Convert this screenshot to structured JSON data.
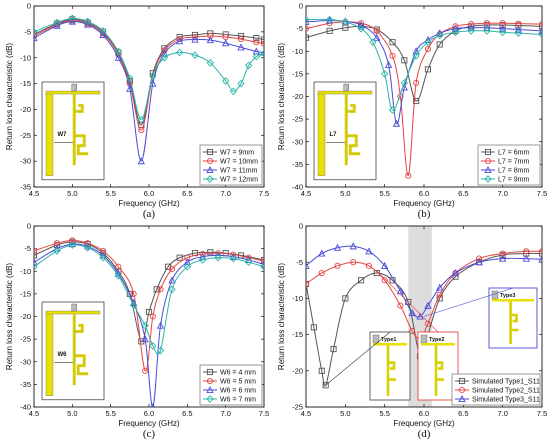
{
  "figure": {
    "panel_labels": [
      "(a)",
      "(b)",
      "(c)",
      "(d)"
    ]
  },
  "chart_data": [
    {
      "type": "line",
      "panel": "(a)",
      "xlabel": "Frequency (GHz)",
      "ylabel": "Return loss characteristic (dB)",
      "xlim": [
        4.5,
        7.5
      ],
      "ylim": [
        -35,
        0
      ],
      "xticks": [
        "4.5",
        "5.0",
        "5.5",
        "6.0",
        "6.5",
        "7.0",
        "7.5"
      ],
      "yticks": [
        "0",
        "-5",
        "-10",
        "-15",
        "-20",
        "-25",
        "-30",
        "-35"
      ],
      "legend_position": "bottom-right",
      "inset_label": "W7",
      "series": [
        {
          "name": "W7 =  9mm",
          "color": "#555555",
          "marker": "square",
          "x": [
            4.5,
            4.8,
            5.0,
            5.2,
            5.4,
            5.6,
            5.75,
            5.9,
            6.05,
            6.2,
            6.4,
            6.6,
            6.8,
            7.0,
            7.2,
            7.4,
            7.5
          ],
          "y": [
            -5.5,
            -3.4,
            -2.6,
            -3.2,
            -5.0,
            -9.0,
            -14.5,
            -23.0,
            -13.0,
            -8.2,
            -6.0,
            -5.6,
            -5.3,
            -5.5,
            -5.8,
            -6.2,
            -6.5
          ]
        },
        {
          "name": "W7 = 10mm",
          "color": "#e64545",
          "marker": "circle",
          "x": [
            4.5,
            4.8,
            5.0,
            5.2,
            5.4,
            5.6,
            5.75,
            5.9,
            6.05,
            6.2,
            6.4,
            6.6,
            6.8,
            7.0,
            7.2,
            7.4,
            7.5
          ],
          "y": [
            -5.8,
            -3.6,
            -2.8,
            -3.4,
            -5.3,
            -9.4,
            -15.0,
            -24.0,
            -13.5,
            -8.6,
            -6.4,
            -6.0,
            -5.8,
            -6.0,
            -6.4,
            -7.0,
            -7.3
          ]
        },
        {
          "name": "W7 = 11mm",
          "color": "#4a4ad8",
          "marker": "triangle",
          "x": [
            4.5,
            4.8,
            5.0,
            5.2,
            5.4,
            5.6,
            5.75,
            5.9,
            6.05,
            6.2,
            6.4,
            6.6,
            6.8,
            7.0,
            7.2,
            7.4,
            7.5
          ],
          "y": [
            -6.2,
            -3.8,
            -3.0,
            -3.6,
            -5.6,
            -10.0,
            -16.0,
            -30.0,
            -15.0,
            -9.2,
            -6.8,
            -6.5,
            -6.6,
            -7.2,
            -8.0,
            -8.8,
            -9.0
          ]
        },
        {
          "name": "W7 = 12mm",
          "color": "#2bb5a8",
          "marker": "diamond",
          "x": [
            4.5,
            4.8,
            5.0,
            5.2,
            5.4,
            5.6,
            5.75,
            5.9,
            6.05,
            6.2,
            6.4,
            6.6,
            6.8,
            7.0,
            7.1,
            7.2,
            7.3,
            7.4,
            7.5
          ],
          "y": [
            -5.0,
            -3.2,
            -2.4,
            -3.0,
            -4.8,
            -8.8,
            -14.0,
            -22.0,
            -13.5,
            -10.0,
            -9.0,
            -9.5,
            -11.0,
            -14.5,
            -16.5,
            -15.0,
            -11.5,
            -9.8,
            -9.2
          ]
        }
      ]
    },
    {
      "type": "line",
      "panel": "(b)",
      "xlabel": "Frequency (GHz)",
      "ylabel": "Return loss characteristic (dB)",
      "xlim": [
        4.5,
        7.5
      ],
      "ylim": [
        -40,
        0
      ],
      "xticks": [
        "4.5",
        "5.0",
        "5.5",
        "6.0",
        "6.5",
        "7.0",
        "7.5"
      ],
      "yticks": [
        "0",
        "-5",
        "-10",
        "-15",
        "-20",
        "-25",
        "-30",
        "-35",
        "-40"
      ],
      "legend_position": "bottom-right",
      "inset_label": "L7",
      "series": [
        {
          "name": "L7 = 6mm",
          "color": "#555555",
          "marker": "square",
          "x": [
            4.5,
            4.8,
            5.0,
            5.2,
            5.4,
            5.6,
            5.75,
            5.9,
            6.05,
            6.2,
            6.4,
            6.6,
            6.8,
            7.0,
            7.2,
            7.5
          ],
          "y": [
            -7.0,
            -5.5,
            -4.8,
            -4.5,
            -5.2,
            -8.0,
            -12.0,
            -21.0,
            -14.0,
            -8.5,
            -5.5,
            -4.5,
            -4.2,
            -4.2,
            -4.3,
            -4.5
          ]
        },
        {
          "name": "L7 = 7mm",
          "color": "#e64545",
          "marker": "circle",
          "x": [
            4.5,
            4.8,
            5.0,
            5.2,
            5.4,
            5.6,
            5.7,
            5.8,
            5.9,
            6.05,
            6.2,
            6.4,
            6.6,
            6.8,
            7.0,
            7.2,
            7.5
          ],
          "y": [
            -5.0,
            -3.8,
            -3.5,
            -3.8,
            -5.5,
            -11.0,
            -20.0,
            -37.5,
            -17.0,
            -9.5,
            -6.2,
            -4.5,
            -4.0,
            -3.8,
            -3.8,
            -3.9,
            -4.0
          ]
        },
        {
          "name": "L7 = 8mm",
          "color": "#4a4ad8",
          "marker": "triangle",
          "x": [
            4.5,
            4.8,
            5.0,
            5.2,
            5.4,
            5.55,
            5.65,
            5.75,
            5.9,
            6.05,
            6.2,
            6.4,
            6.6,
            6.8,
            7.0,
            7.2,
            7.5
          ],
          "y": [
            -3.5,
            -3.2,
            -3.4,
            -4.2,
            -7.0,
            -13.0,
            -26.0,
            -18.0,
            -10.0,
            -7.5,
            -6.0,
            -5.0,
            -4.8,
            -4.8,
            -5.0,
            -5.2,
            -5.5
          ]
        },
        {
          "name": "L7 = 9mm",
          "color": "#2bb5a8",
          "marker": "diamond",
          "x": [
            4.5,
            4.8,
            5.0,
            5.2,
            5.35,
            5.5,
            5.6,
            5.75,
            5.9,
            6.05,
            6.2,
            6.4,
            6.6,
            6.8,
            7.0,
            7.2,
            7.5
          ],
          "y": [
            -3.0,
            -3.0,
            -3.5,
            -5.0,
            -8.0,
            -15.0,
            -23.0,
            -17.0,
            -11.0,
            -8.0,
            -6.5,
            -5.8,
            -5.5,
            -5.5,
            -5.8,
            -6.0,
            -6.3
          ]
        }
      ]
    },
    {
      "type": "line",
      "panel": "(c)",
      "xlabel": "Frequency (GHz)",
      "ylabel": "Return loss characteristic (dB)",
      "xlim": [
        4.5,
        7.5
      ],
      "ylim": [
        -40,
        0
      ],
      "xticks": [
        "4.5",
        "5.0",
        "5.5",
        "6.0",
        "6.5",
        "7.0",
        "7.5"
      ],
      "yticks": [
        "0",
        "-5",
        "-10",
        "-15",
        "-20",
        "-25",
        "-30",
        "-35",
        "-40"
      ],
      "legend_position": "bottom-right",
      "inset_label": "W6",
      "series": [
        {
          "name": "W6 = 4 mm",
          "color": "#555555",
          "marker": "square",
          "x": [
            4.5,
            4.8,
            5.0,
            5.2,
            5.4,
            5.6,
            5.75,
            5.9,
            6.0,
            6.1,
            6.25,
            6.4,
            6.6,
            6.8,
            7.0,
            7.2,
            7.5
          ],
          "y": [
            -6.5,
            -4.2,
            -3.5,
            -4.0,
            -6.0,
            -10.0,
            -15.0,
            -25.5,
            -19.0,
            -14.0,
            -9.0,
            -7.0,
            -6.0,
            -5.8,
            -6.0,
            -6.5,
            -7.5
          ]
        },
        {
          "name": "W6 = 5 mm",
          "color": "#e64545",
          "marker": "circle",
          "x": [
            4.5,
            4.8,
            5.0,
            5.2,
            5.4,
            5.6,
            5.8,
            5.95,
            6.05,
            6.15,
            6.3,
            6.5,
            6.7,
            6.9,
            7.1,
            7.3,
            7.5
          ],
          "y": [
            -5.5,
            -3.8,
            -3.2,
            -3.8,
            -5.5,
            -9.0,
            -15.0,
            -32.0,
            -20.0,
            -14.0,
            -9.5,
            -7.0,
            -6.2,
            -6.0,
            -6.3,
            -7.0,
            -7.8
          ]
        },
        {
          "name": "W6 = 6 mm",
          "color": "#4a4ad8",
          "marker": "triangle",
          "x": [
            4.5,
            4.8,
            5.0,
            5.2,
            5.4,
            5.6,
            5.8,
            5.95,
            6.05,
            6.15,
            6.3,
            6.5,
            6.7,
            6.9,
            7.1,
            7.3,
            7.5
          ],
          "y": [
            -8.0,
            -5.0,
            -4.0,
            -4.5,
            -6.5,
            -10.5,
            -17.0,
            -25.0,
            -40.0,
            -22.0,
            -12.0,
            -8.0,
            -6.8,
            -6.5,
            -6.8,
            -7.5,
            -8.5
          ]
        },
        {
          "name": "W6 = 7 mm",
          "color": "#2bb5a8",
          "marker": "diamond",
          "x": [
            4.5,
            4.8,
            5.0,
            5.2,
            5.4,
            5.6,
            5.8,
            5.95,
            6.05,
            6.15,
            6.3,
            6.5,
            6.7,
            6.9,
            7.1,
            7.3,
            7.5
          ],
          "y": [
            -9.0,
            -5.5,
            -4.2,
            -4.8,
            -7.0,
            -11.0,
            -17.5,
            -22.0,
            -26.5,
            -27.5,
            -14.0,
            -9.0,
            -7.5,
            -7.0,
            -7.2,
            -8.0,
            -9.0
          ]
        }
      ]
    },
    {
      "type": "line",
      "panel": "(d)",
      "xlabel": "Frequency (GHz)",
      "ylabel": "Return loss characteristic (dB)",
      "xlim": [
        4.5,
        7.5
      ],
      "ylim": [
        -25,
        0
      ],
      "xticks": [
        "4.5",
        "5.0",
        "5.5",
        "6.0",
        "6.5",
        "7.0",
        "7.5"
      ],
      "yticks": [
        "0",
        "-5",
        "-10",
        "-15",
        "-20",
        "-25"
      ],
      "legend_position": "bottom-right",
      "shaded_band": [
        5.8,
        6.1
      ],
      "inset_labels": [
        "Type1",
        "Type2",
        "Type3"
      ],
      "series": [
        {
          "name": "Simulated Type1_S11",
          "color": "#555555",
          "marker": "square",
          "x": [
            4.5,
            4.6,
            4.7,
            4.75,
            4.85,
            5.0,
            5.2,
            5.4,
            5.6,
            5.8,
            5.95,
            6.05,
            6.2,
            6.4,
            6.7,
            7.0,
            7.3,
            7.5
          ],
          "y": [
            -8.0,
            -14.0,
            -20.0,
            -22.0,
            -17.0,
            -10.0,
            -7.5,
            -6.5,
            -7.5,
            -10.5,
            -18.0,
            -15.0,
            -10.0,
            -7.0,
            -5.0,
            -4.0,
            -3.8,
            -3.8
          ]
        },
        {
          "name": "Simulated Type2_S11",
          "color": "#e64545",
          "marker": "circle",
          "x": [
            4.5,
            4.7,
            4.9,
            5.1,
            5.3,
            5.5,
            5.7,
            5.85,
            5.95,
            6.05,
            6.2,
            6.4,
            6.7,
            7.0,
            7.3,
            7.5
          ],
          "y": [
            -8.0,
            -6.5,
            -5.5,
            -5.0,
            -5.5,
            -7.5,
            -11.0,
            -14.5,
            -15.5,
            -13.5,
            -9.5,
            -6.5,
            -4.5,
            -3.8,
            -3.5,
            -3.5
          ]
        },
        {
          "name": "Simulated Type3_S11",
          "color": "#4a4ad8",
          "marker": "triangle",
          "x": [
            4.5,
            4.7,
            4.9,
            5.1,
            5.3,
            5.5,
            5.7,
            5.85,
            5.95,
            6.05,
            6.2,
            6.4,
            6.7,
            7.0,
            7.3,
            7.5
          ],
          "y": [
            -5.5,
            -3.8,
            -3.0,
            -2.8,
            -3.5,
            -5.5,
            -9.0,
            -12.0,
            -12.5,
            -11.0,
            -8.5,
            -6.5,
            -5.0,
            -4.5,
            -4.5,
            -4.6
          ]
        }
      ]
    }
  ]
}
